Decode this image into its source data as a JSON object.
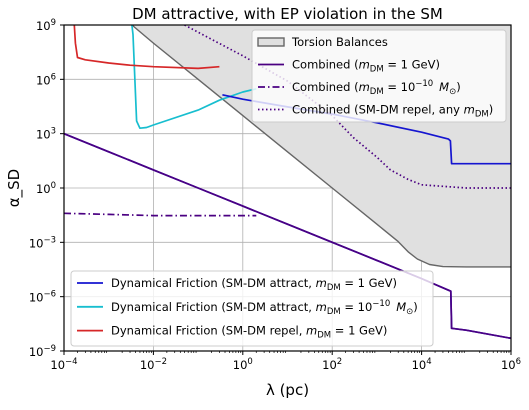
{
  "chart_data": {
    "type": "line",
    "title": "DM attractive, with EP violation in the SM",
    "xlabel": "λ (pc)",
    "ylabel": "α_SD",
    "xscale": "log",
    "yscale": "log",
    "xlim": [
      0.0001,
      1000000
    ],
    "ylim": [
      1e-09,
      1000000000.0
    ],
    "grid": true,
    "x_ticks": [
      {
        "value": 0.0001,
        "base": "10",
        "exp": "−4"
      },
      {
        "value": 0.01,
        "base": "10",
        "exp": "−2"
      },
      {
        "value": 1,
        "base": "10",
        "exp": "0"
      },
      {
        "value": 100,
        "base": "10",
        "exp": "2"
      },
      {
        "value": 10000,
        "base": "10",
        "exp": "4"
      },
      {
        "value": 1000000,
        "base": "10",
        "exp": "6"
      }
    ],
    "y_ticks": [
      {
        "value": 1e-09,
        "base": "10",
        "exp": "−9"
      },
      {
        "value": 1e-06,
        "base": "10",
        "exp": "−6"
      },
      {
        "value": 0.001,
        "base": "10",
        "exp": "−3"
      },
      {
        "value": 1,
        "base": "10",
        "exp": "0"
      },
      {
        "value": 1000,
        "base": "10",
        "exp": "3"
      },
      {
        "value": 1000000,
        "base": "10",
        "exp": "6"
      },
      {
        "value": 1000000000,
        "base": "10",
        "exp": "9"
      }
    ],
    "legend_upper": {
      "placement": "top-right",
      "entries": [
        {
          "ref": "torsion",
          "label": "Torsion Balances"
        },
        {
          "ref": "comb1",
          "label": "Combined (m_DM = 1 GeV)"
        },
        {
          "ref": "comb2",
          "label": "Combined (m_DM = 10^−10 M_⊙)"
        },
        {
          "ref": "comb3",
          "label": "Combined (SM-DM repel, any m_DM)"
        }
      ]
    },
    "legend_lower": {
      "placement": "bottom-left",
      "entries": [
        {
          "ref": "df1",
          "label": "Dynamical Friction (SM-DM attract, m_DM = 1 GeV)"
        },
        {
          "ref": "df2",
          "label": "Dynamical Friction (SM-DM attract, m_DM = 10^−10 M_⊙)"
        },
        {
          "ref": "df3",
          "label": "Dynamical Friction (SM-DM repel, m_DM = 1 GeV)"
        }
      ]
    },
    "series": [
      {
        "id": "torsion",
        "color": "#666666",
        "fill": "#e0e0e0",
        "style": "solid",
        "points": [
          [
            0.0033,
            1000000000.0
          ],
          [
            0.01,
            100000000.0
          ],
          [
            0.1,
            1000000.0
          ],
          [
            1,
            10000.0
          ],
          [
            10,
            100
          ],
          [
            100,
            1
          ],
          [
            1000,
            0.01
          ],
          [
            3000,
            0.0011
          ],
          [
            5000,
            0.0003
          ],
          [
            8000,
            0.00012
          ],
          [
            15000,
            6e-05
          ],
          [
            30000,
            4.6e-05
          ],
          [
            100000,
            4.4e-05
          ],
          [
            1000000,
            4.4e-05
          ]
        ]
      },
      {
        "id": "df1",
        "color": "#1515d0",
        "style": "solid",
        "points": [
          [
            0.0001,
            1000
          ],
          [
            0.001,
            100
          ],
          [
            0.01,
            10
          ],
          [
            0.1,
            1
          ],
          [
            1,
            0.1
          ],
          [
            10,
            0.01
          ],
          [
            100,
            0.001
          ],
          [
            1000,
            0.0001
          ],
          [
            10000,
            1e-05
          ],
          [
            45000,
            2e-06
          ],
          [
            47000,
            1.8e-08
          ],
          [
            100000,
            1.4e-08
          ],
          [
            1000000,
            5e-09
          ]
        ]
      },
      {
        "id": "df1_upper",
        "color": "#1515d0",
        "style": "solid",
        "points": [
          [
            0.35,
            140000.0
          ],
          [
            1,
            80000.0
          ],
          [
            10,
            30000.0
          ],
          [
            100,
            12000.0
          ],
          [
            1000,
            4000.0
          ],
          [
            10000,
            1200.0
          ],
          [
            40000,
            500
          ],
          [
            44000,
            400
          ],
          [
            47000,
            22
          ],
          [
            100000,
            22
          ],
          [
            1000000,
            22
          ]
        ]
      },
      {
        "id": "df2",
        "color": "#17becf",
        "style": "solid",
        "points": [
          [
            0.0033,
            1000000000.0
          ],
          [
            0.0035,
            300000000.0
          ],
          [
            0.0042,
            5000
          ],
          [
            0.005,
            2000
          ],
          [
            0.007,
            2200
          ],
          [
            0.01,
            3000
          ],
          [
            0.1,
            20000
          ],
          [
            0.3,
            70000
          ],
          [
            1,
            200000.0
          ],
          [
            2,
            300000.0
          ]
        ]
      },
      {
        "id": "df3",
        "color": "#d62728",
        "style": "solid",
        "points": [
          [
            0.00017,
            1000000000.0
          ],
          [
            0.00018,
            100000000.0
          ],
          [
            0.0002,
            16000000.0
          ],
          [
            0.0003,
            12000000.0
          ],
          [
            0.001,
            8000000.0
          ],
          [
            0.003,
            6000000.0
          ],
          [
            0.01,
            5000000.0
          ],
          [
            0.1,
            4000000.0
          ],
          [
            0.3,
            5000000.0
          ]
        ]
      },
      {
        "id": "comb1",
        "color": "#4b0082",
        "style": "solid",
        "points": [
          [
            0.0001,
            1000
          ],
          [
            0.001,
            100
          ],
          [
            0.01,
            10
          ],
          [
            0.1,
            1
          ],
          [
            1,
            0.1
          ],
          [
            10,
            0.01
          ],
          [
            100,
            0.001
          ],
          [
            1000,
            0.0001
          ],
          [
            10000,
            1e-05
          ],
          [
            45000,
            2e-06
          ],
          [
            47000,
            1.8e-08
          ],
          [
            100000,
            1.4e-08
          ],
          [
            1000000,
            5e-09
          ]
        ]
      },
      {
        "id": "comb2",
        "color": "#4b0082",
        "style": "dashdot",
        "points": [
          [
            0.0001,
            0.04
          ],
          [
            0.001,
            0.035
          ],
          [
            0.01,
            0.03
          ],
          [
            0.1,
            0.03
          ],
          [
            1,
            0.03
          ],
          [
            2,
            0.03
          ]
        ]
      },
      {
        "id": "comb3",
        "color": "#4b0082",
        "style": "dotted",
        "points": [
          [
            0.05,
            1000000000.0
          ],
          [
            0.1,
            400000000.0
          ],
          [
            1,
            20000000.0
          ],
          [
            10,
            800000.0
          ],
          [
            100,
            10000.0
          ],
          [
            300,
            600
          ],
          [
            1000,
            50
          ],
          [
            2000,
            10
          ],
          [
            5000,
            3
          ],
          [
            10000,
            1.5
          ],
          [
            100000,
            1.0
          ],
          [
            1000000,
            1.0
          ]
        ]
      }
    ]
  }
}
